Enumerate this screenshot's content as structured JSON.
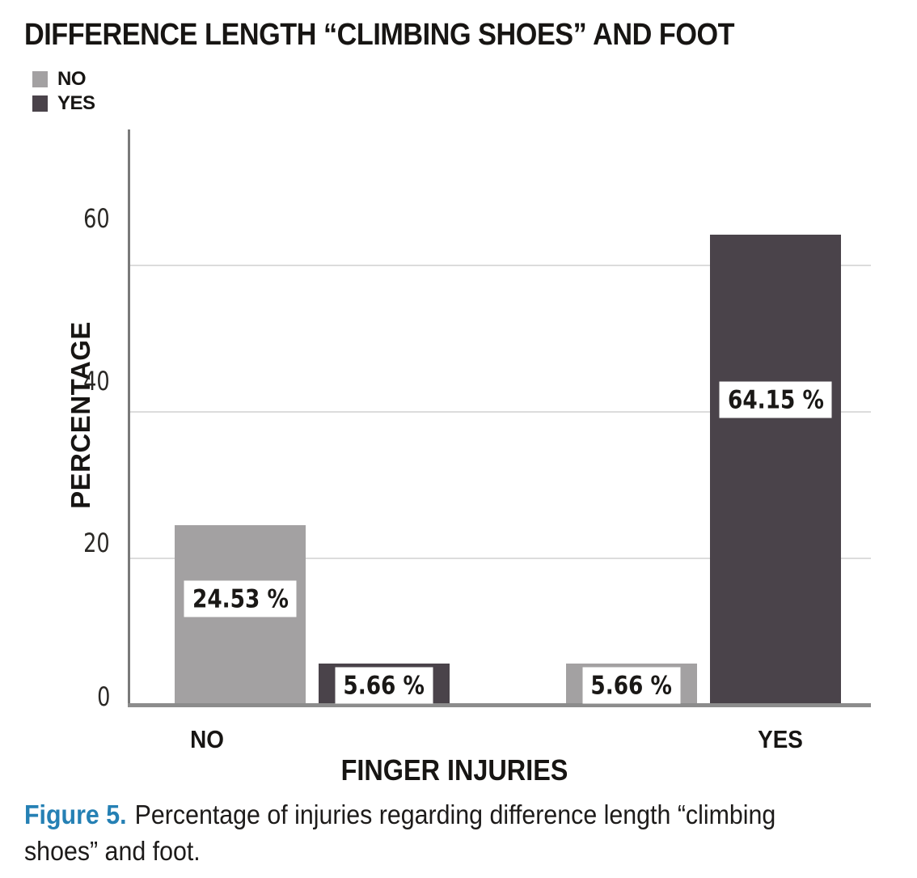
{
  "chart_data": {
    "type": "bar",
    "title": "DIFFERENCE LENGTH “CLIMBING SHOES” AND FOOT",
    "xlabel": "FINGER INJURIES",
    "ylabel": "PERCENTAGE",
    "categories": [
      "NO",
      "YES"
    ],
    "series": [
      {
        "name": "NO",
        "color": "#a3a1a2",
        "values": [
          24.53,
          5.66
        ],
        "value_labels": [
          "24.53 %",
          "5.66 %"
        ]
      },
      {
        "name": "YES",
        "color": "#4a434a",
        "values": [
          5.66,
          64.15
        ],
        "value_labels": [
          "5.66 %",
          "64.15 %"
        ]
      }
    ],
    "yticks": [
      "0",
      "20",
      "40",
      "60"
    ],
    "ytick_values": [
      0,
      20,
      40,
      60
    ],
    "ylim": [
      0,
      78
    ],
    "grid": true,
    "gridline_values": [
      20,
      40,
      60
    ],
    "gridline_color": "#dcdcdc",
    "axis_color": "#8c8c8c",
    "legend_position": "top-left",
    "value_label_background": "#ffffff"
  },
  "legend": {
    "items": [
      {
        "label": "NO",
        "color": "#a3a1a2"
      },
      {
        "label": "YES",
        "color": "#4a434a"
      }
    ]
  },
  "caption": {
    "prefix": "Figure 5.",
    "prefix_color": "#2580b4",
    "line1": "Percentage of injuries regarding difference length “climbing",
    "line2": "shoes” and foot.",
    "full_text": "Figure 5. Percentage of injuries regarding difference length “climbing shoes” and foot."
  }
}
